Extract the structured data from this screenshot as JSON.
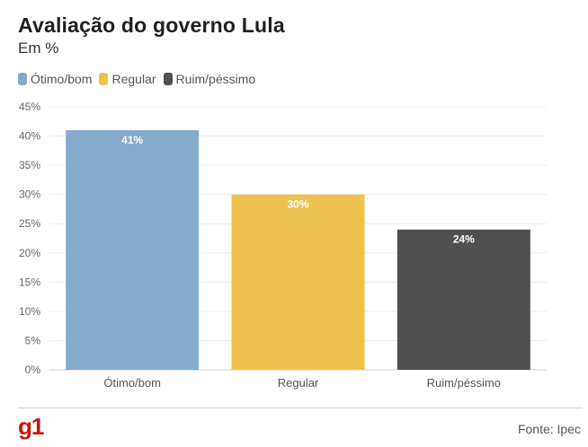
{
  "title": "Avaliação do governo Lula",
  "subtitle": "Em %",
  "legend": [
    {
      "label": "Ótimo/bom",
      "color": "#86abca"
    },
    {
      "label": "Regular",
      "color": "#ecc14d"
    },
    {
      "label": "Ruim/péssimo",
      "color": "#505050"
    }
  ],
  "brand": "g1",
  "source": "Fonte: Ipec",
  "chart_data": {
    "type": "bar",
    "title": "Avaliação do governo Lula",
    "subtitle": "Em %",
    "categories": [
      "Ótimo/bom",
      "Regular",
      "Ruim/péssimo"
    ],
    "values": [
      41,
      30,
      24
    ],
    "data_labels": [
      "41%",
      "30%",
      "24%"
    ],
    "colors": [
      "#86abca",
      "#ecc14d",
      "#505050"
    ],
    "ylim": [
      0,
      45
    ],
    "yticks": [
      0,
      5,
      10,
      15,
      20,
      25,
      30,
      35,
      40,
      45
    ],
    "ytick_labels": [
      "0%",
      "5%",
      "10%",
      "15%",
      "20%",
      "25%",
      "30%",
      "35%",
      "40%",
      "45%"
    ],
    "xlabel": "",
    "ylabel": "",
    "grid": true,
    "legend_position": "top-left"
  }
}
